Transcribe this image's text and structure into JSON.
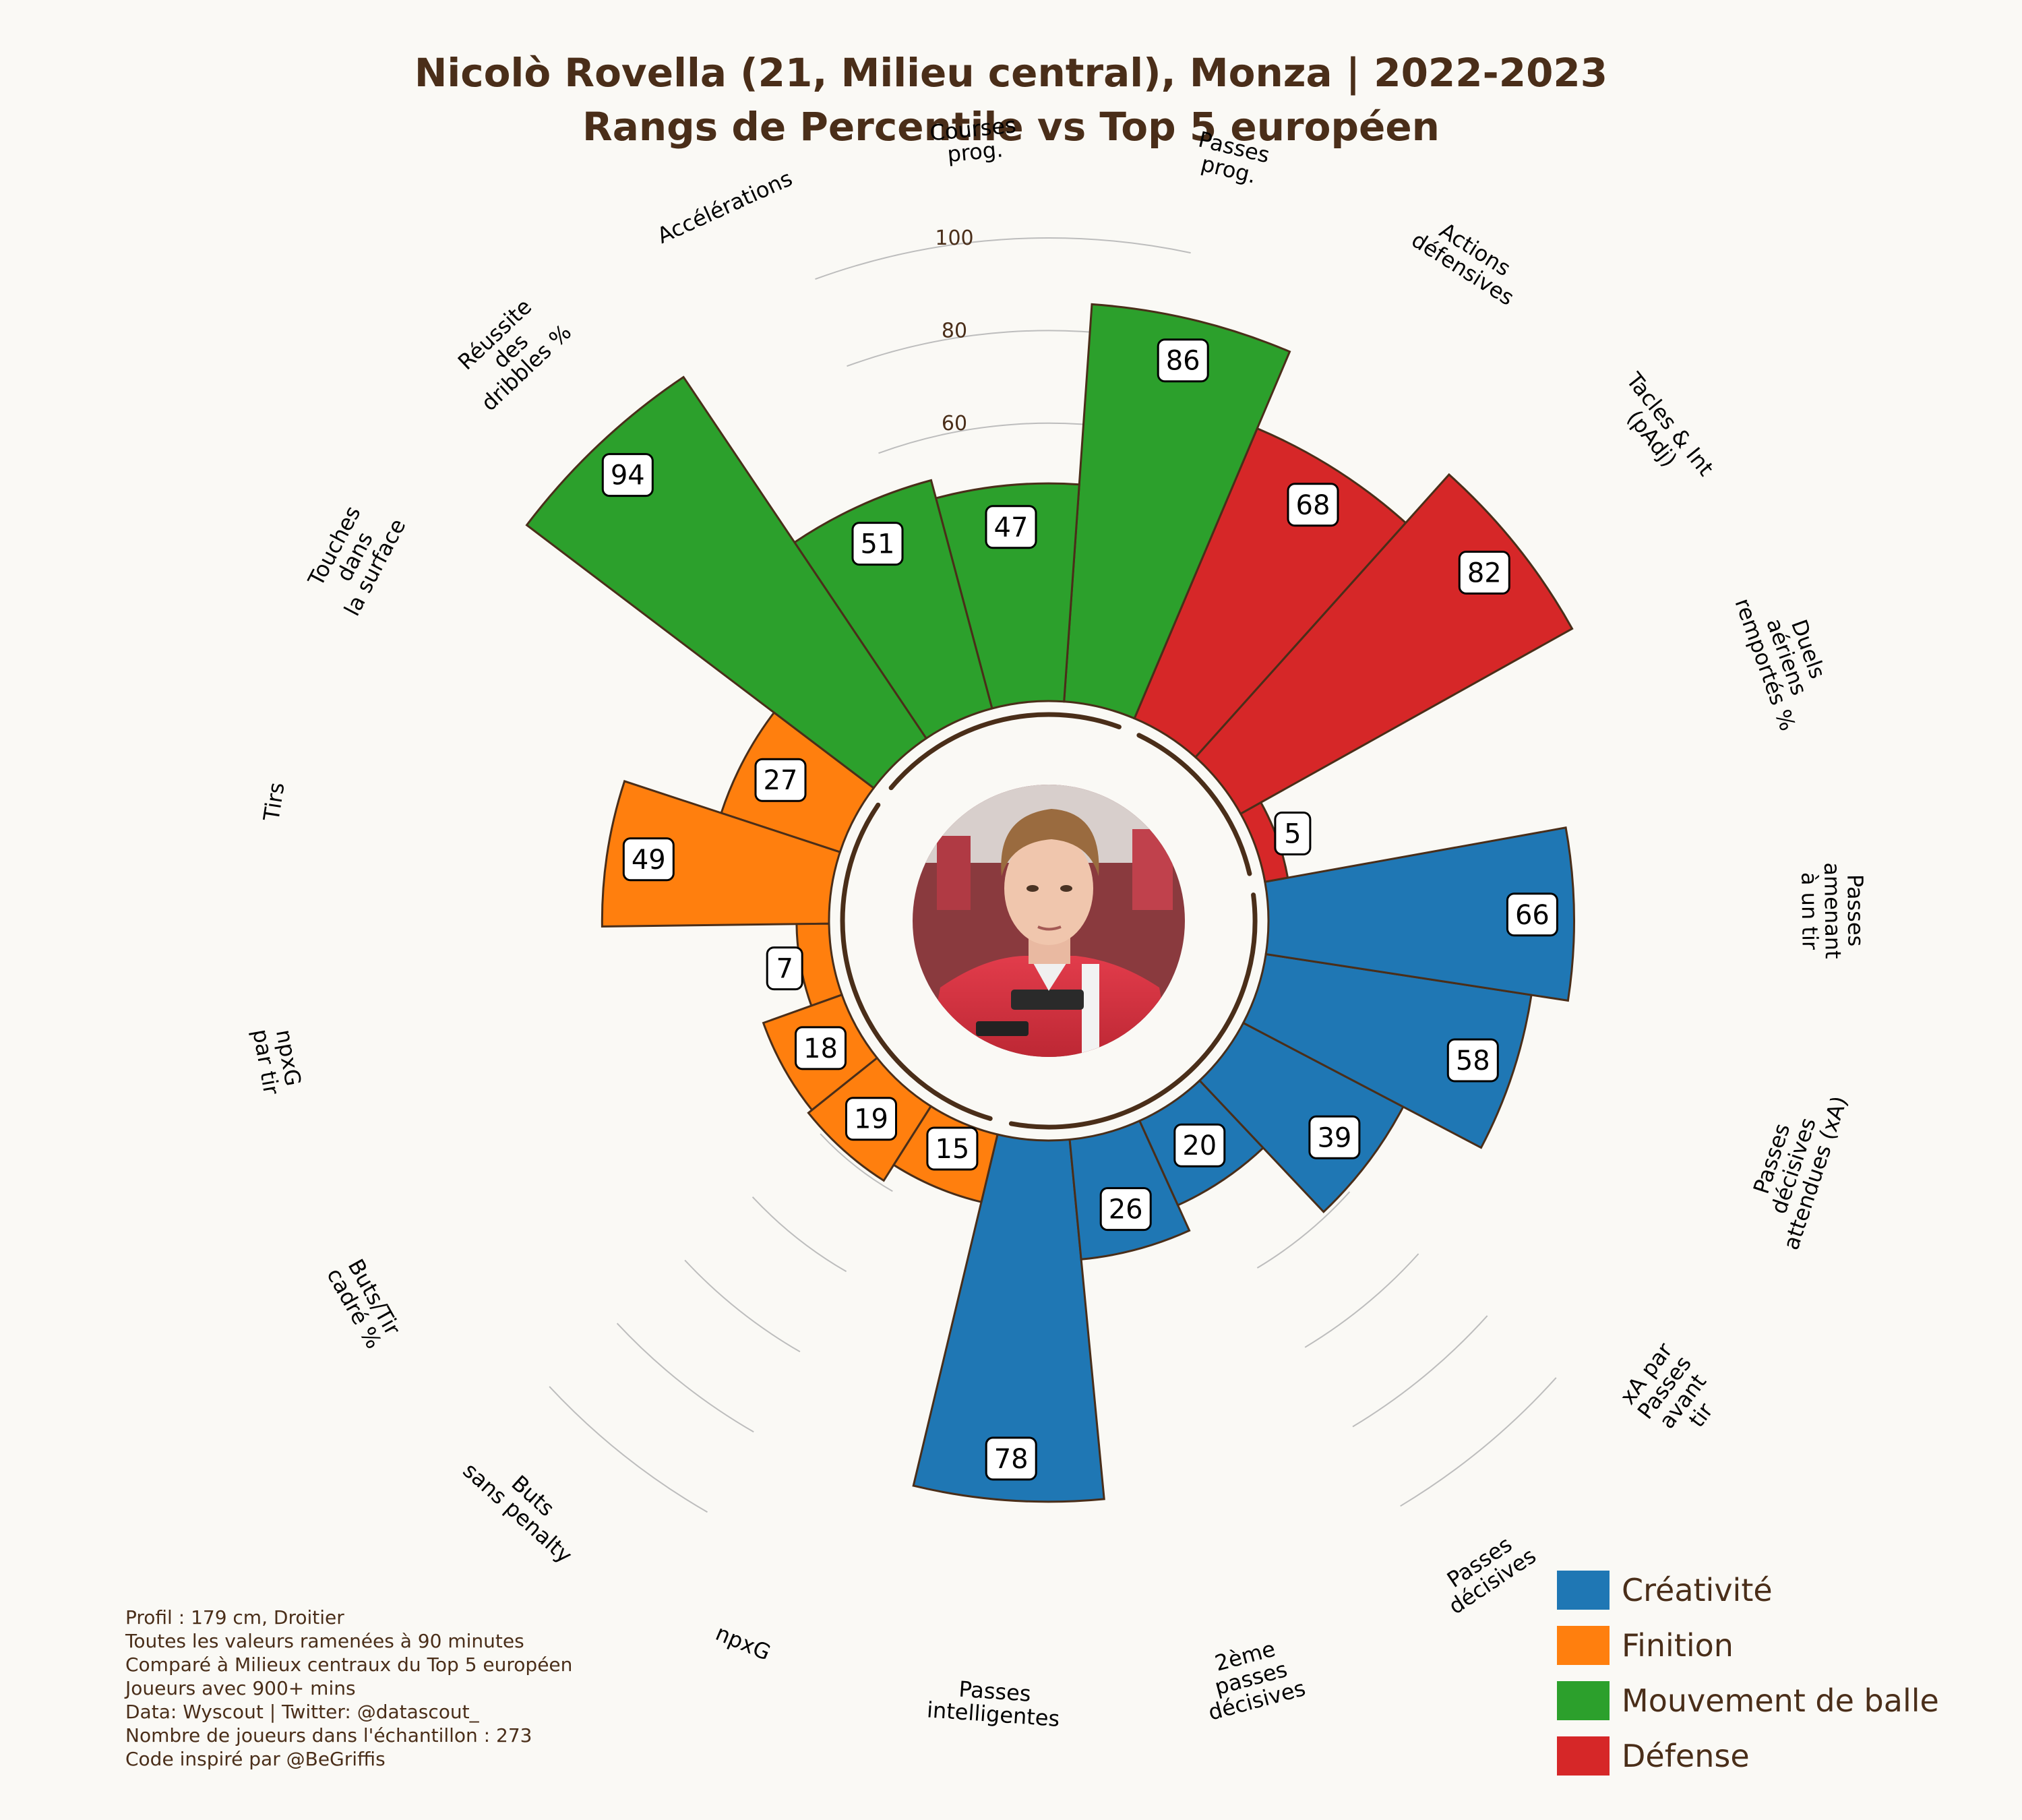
{
  "title": {
    "line1": "Nicolò Rovella (21, Milieu central), Monza | 2022-2023",
    "line2": "Rangs de Percentile vs Top 5 européen"
  },
  "chart_data": {
    "type": "radial-bar",
    "title": "Nicolò Rovella (21, Milieu central), Monza | 2022-2023 — Rangs de Percentile vs Top 5 européen",
    "range": [
      0,
      100
    ],
    "ticks": [
      "0",
      "20",
      "40",
      "60",
      "80",
      "100"
    ],
    "colors": {
      "Créativité": "#1f77b4",
      "Finition": "#ff7f0e",
      "Mouvement de balle": "#2ca02c",
      "Défense": "#d62728"
    },
    "categories": [
      {
        "label": "Passes\nintelligentes",
        "value": 78,
        "group": "Créativité"
      },
      {
        "label": "2ème\npasses\ndécisives",
        "value": 26,
        "group": "Créativité"
      },
      {
        "label": "Passes\ndécisives",
        "value": 20,
        "group": "Créativité"
      },
      {
        "label": "xA par\nPasses\navant\ntir",
        "value": 39,
        "group": "Créativité"
      },
      {
        "label": "Passes\ndécisives\nattendues (xA)",
        "value": 58,
        "group": "Créativité"
      },
      {
        "label": "Passes\namenant\nà un tir",
        "value": 66,
        "group": "Créativité"
      },
      {
        "label": "Duels\naériens\nremportés %",
        "value": 5,
        "group": "Défense"
      },
      {
        "label": "Tacles & Int\n(pAdj)",
        "value": 82,
        "group": "Défense"
      },
      {
        "label": "Actions\ndéfensives",
        "value": 68,
        "group": "Défense"
      },
      {
        "label": "Passes\nprog.",
        "value": 86,
        "group": "Mouvement de balle"
      },
      {
        "label": "Courses\nprog.",
        "value": 47,
        "group": "Mouvement de balle"
      },
      {
        "label": "Accélérations",
        "value": 51,
        "group": "Mouvement de balle"
      },
      {
        "label": "Réussite\ndes\ndribbles %",
        "value": 94,
        "group": "Mouvement de balle"
      },
      {
        "label": "Touches\ndans\nla surface",
        "value": 27,
        "group": "Finition"
      },
      {
        "label": "Tirs",
        "value": 49,
        "group": "Finition"
      },
      {
        "label": "npxG\npar tir",
        "value": 7,
        "group": "Finition"
      },
      {
        "label": "Buts/Tir\ncadré %",
        "value": 18,
        "group": "Finition"
      },
      {
        "label": "Buts\nsans penalty",
        "value": 19,
        "group": "Finition"
      },
      {
        "label": "npxG",
        "value": 15,
        "group": "Finition"
      }
    ]
  },
  "legend": [
    {
      "label": "Créativité",
      "color": "#1f77b4"
    },
    {
      "label": "Finition",
      "color": "#ff7f0e"
    },
    {
      "label": "Mouvement de balle",
      "color": "#2ca02c"
    },
    {
      "label": "Défense",
      "color": "#d62728"
    }
  ],
  "footnote": [
    "Profil : 179 cm, Droitier",
    "Toutes les valeurs ramenées à 90 minutes",
    "Comparé à Milieux centraux du Top 5 européen",
    "Joueurs avec 900+ mins",
    "Data: Wyscout | Twitter: @datascout_",
    "Nombre de joueurs dans l'échantillon : 273",
    "Code inspiré par @BeGriffis"
  ]
}
